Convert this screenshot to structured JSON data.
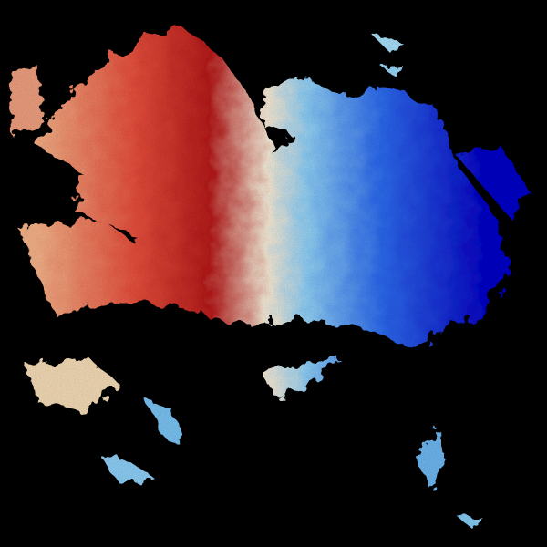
{
  "image": {
    "kind": "doppler-radar-velocity",
    "background": "#000000",
    "palette": {
      "inbound_dark": "#1010c8",
      "inbound_mid": "#2f6cf0",
      "inbound_light": "#8fd0f8",
      "neutral": "#f8ecd8",
      "outbound_light": "#f7b48a",
      "outbound_mid": "#e8503e",
      "outbound_dark": "#b81e1e"
    }
  }
}
